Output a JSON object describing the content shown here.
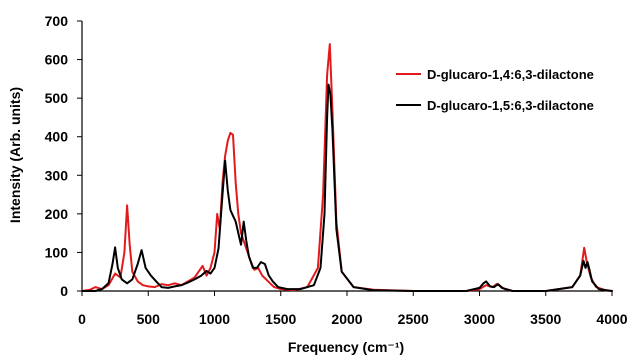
{
  "chart_data": {
    "type": "line",
    "title": "",
    "xlabel": "Frequency (cm⁻¹)",
    "ylabel": "Intensity (Arb. units)",
    "xlim": [
      0,
      4000
    ],
    "ylim": [
      0,
      700
    ],
    "xticks": [
      "0",
      "500",
      "1000",
      "1500",
      "2000",
      "2500",
      "3000",
      "3500",
      "4000"
    ],
    "yticks": [
      "0",
      "100",
      "200",
      "300",
      "400",
      "500",
      "600",
      "700"
    ],
    "grid": false,
    "legend_position": "right",
    "series": [
      {
        "name": "D-glucaro-1,4:6,3-dilactone",
        "color": "#e31a1c",
        "x": [
          0,
          60,
          100,
          150,
          200,
          250,
          290,
          320,
          340,
          360,
          380,
          420,
          460,
          500,
          550,
          600,
          650,
          700,
          750,
          800,
          850,
          880,
          910,
          940,
          970,
          1000,
          1020,
          1040,
          1060,
          1080,
          1100,
          1120,
          1140,
          1160,
          1180,
          1200,
          1220,
          1240,
          1270,
          1300,
          1330,
          1360,
          1390,
          1420,
          1450,
          1500,
          1600,
          1700,
          1780,
          1820,
          1850,
          1870,
          1890,
          1920,
          1960,
          2050,
          2200,
          2500,
          2900,
          3000,
          3050,
          3080,
          3100,
          3130,
          3160,
          3190,
          3250,
          3500,
          3700,
          3760,
          3790,
          3810,
          3840,
          3880,
          3950,
          4000
        ],
        "y": [
          0,
          3,
          10,
          5,
          15,
          45,
          35,
          100,
          222,
          120,
          50,
          25,
          15,
          12,
          10,
          18,
          15,
          20,
          15,
          25,
          35,
          50,
          65,
          40,
          60,
          100,
          200,
          160,
          280,
          350,
          390,
          410,
          405,
          280,
          200,
          150,
          130,
          110,
          80,
          55,
          60,
          40,
          30,
          20,
          10,
          5,
          2,
          10,
          60,
          250,
          560,
          640,
          470,
          180,
          50,
          10,
          3,
          0,
          0,
          5,
          15,
          12,
          10,
          18,
          12,
          5,
          0,
          0,
          10,
          40,
          112,
          75,
          35,
          10,
          2,
          0
        ]
      },
      {
        "name": "D-glucaro-1,5:6,3-dilactone",
        "color": "#000000",
        "x": [
          0,
          100,
          150,
          200,
          230,
          250,
          270,
          300,
          340,
          380,
          420,
          450,
          480,
          520,
          560,
          600,
          650,
          700,
          750,
          800,
          850,
          900,
          940,
          970,
          1000,
          1030,
          1060,
          1080,
          1100,
          1120,
          1140,
          1160,
          1180,
          1200,
          1220,
          1240,
          1260,
          1290,
          1320,
          1350,
          1380,
          1410,
          1440,
          1480,
          1550,
          1650,
          1750,
          1800,
          1830,
          1850,
          1860,
          1875,
          1890,
          1920,
          1960,
          2050,
          2200,
          2500,
          2900,
          3000,
          3030,
          3050,
          3080,
          3110,
          3140,
          3170,
          3250,
          3500,
          3700,
          3760,
          3785,
          3800,
          3815,
          3830,
          3850,
          3900,
          4000
        ],
        "y": [
          0,
          0,
          5,
          20,
          70,
          113,
          60,
          30,
          20,
          30,
          70,
          106,
          60,
          40,
          25,
          10,
          8,
          12,
          15,
          22,
          30,
          40,
          52,
          45,
          60,
          110,
          250,
          338,
          260,
          210,
          195,
          180,
          150,
          120,
          180,
          130,
          90,
          60,
          60,
          75,
          70,
          40,
          25,
          10,
          5,
          5,
          15,
          60,
          200,
          450,
          535,
          510,
          420,
          160,
          50,
          10,
          2,
          0,
          0,
          8,
          20,
          25,
          12,
          10,
          18,
          8,
          0,
          0,
          10,
          40,
          78,
          60,
          75,
          55,
          25,
          5,
          0
        ]
      }
    ]
  }
}
